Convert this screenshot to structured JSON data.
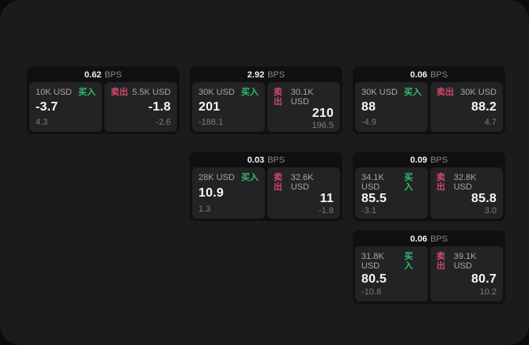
{
  "labels": {
    "buy": "买入",
    "sell": "卖出",
    "bps_unit": "BPS"
  },
  "colors": {
    "buy_green": "#2fbe6e",
    "sell_red": "#d04a68"
  },
  "cards": [
    {
      "bps": "0.62",
      "buy": {
        "size": "10K USD",
        "price": "-3.7",
        "delta": "4.3"
      },
      "sell": {
        "size": "5.5K USD",
        "price": "-1.8",
        "delta": "-2.6"
      }
    },
    {
      "bps": "2.92",
      "buy": {
        "size": "30K USD",
        "price": "201",
        "delta": "-188.1"
      },
      "sell": {
        "size": "30.1K USD",
        "price": "210",
        "delta": "196.5"
      }
    },
    {
      "bps": "0.06",
      "buy": {
        "size": "30K USD",
        "price": "88",
        "delta": "-4.9"
      },
      "sell": {
        "size": "30K USD",
        "price": "88.2",
        "delta": "4.7"
      }
    },
    {
      "bps": "0.03",
      "buy": {
        "size": "28K USD",
        "price": "10.9",
        "delta": "1.3"
      },
      "sell": {
        "size": "32.6K USD",
        "price": "11",
        "delta": "-1.8"
      }
    },
    {
      "bps": "0.09",
      "buy": {
        "size": "34.1K USD",
        "price": "85.5",
        "delta": "-3.1"
      },
      "sell": {
        "size": "32.8K USD",
        "price": "85.8",
        "delta": "3.0"
      }
    },
    {
      "bps": "0.06",
      "buy": {
        "size": "31.8K USD",
        "price": "80.5",
        "delta": "-10.8"
      },
      "sell": {
        "size": "39.1K USD",
        "price": "80.7",
        "delta": "10.2"
      }
    }
  ]
}
